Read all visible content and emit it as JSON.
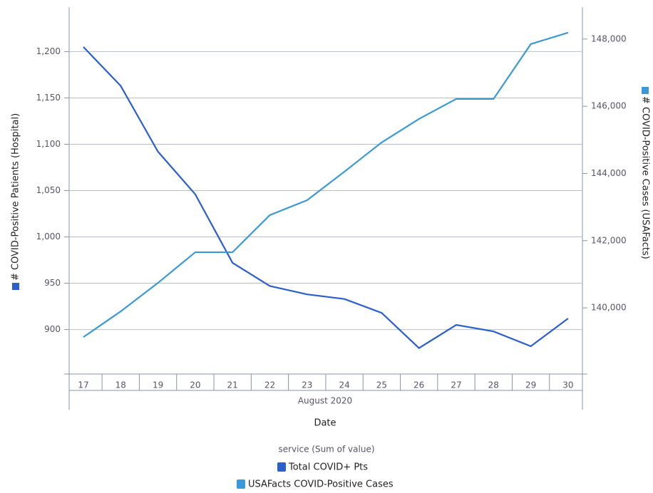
{
  "chart_data": {
    "type": "line",
    "x_label": "Date",
    "x_group": "August 2020",
    "categories": [
      "17",
      "18",
      "19",
      "20",
      "21",
      "22",
      "23",
      "24",
      "25",
      "26",
      "27",
      "28",
      "29",
      "30"
    ],
    "y_label": "# COVID-Positive Patients (Hospital)",
    "y2_label": "# COVID-Positive Cases (USAFacts)",
    "legend_title": "service (Sum of value)",
    "legend_position": "bottom",
    "grid": true,
    "ylim": [
      852,
      1248
    ],
    "yticks": [
      {
        "value": 900,
        "label": "900"
      },
      {
        "value": 950,
        "label": "950"
      },
      {
        "value": 1000,
        "label": "1,000"
      },
      {
        "value": 1050,
        "label": "1,050"
      },
      {
        "value": 1100,
        "label": "1,100"
      },
      {
        "value": 1150,
        "label": "1,150"
      },
      {
        "value": 1200,
        "label": "1,200"
      }
    ],
    "y2lim": [
      138030,
      148950
    ],
    "y2ticks": [
      {
        "value": 140000,
        "label": "140,000"
      },
      {
        "value": 142000,
        "label": "142,000"
      },
      {
        "value": 144000,
        "label": "144,000"
      },
      {
        "value": 146000,
        "label": "146,000"
      },
      {
        "value": 148000,
        "label": "148,000"
      }
    ],
    "series": [
      {
        "name": "Total COVID+ Pts",
        "color": "#2a5fcf",
        "axis": "y",
        "values": [
          1205,
          1163,
          1092,
          1046,
          972,
          947,
          938,
          933,
          918,
          880,
          905,
          898,
          882,
          912
        ]
      },
      {
        "name": "USAFacts COVID-Positive Cases",
        "color": "#3a9ad9",
        "axis": "y2",
        "values": [
          139130,
          139894,
          140743,
          141655,
          141655,
          142759,
          143204,
          144053,
          144923,
          145623,
          146218,
          146218,
          147851,
          148191
        ]
      }
    ]
  }
}
